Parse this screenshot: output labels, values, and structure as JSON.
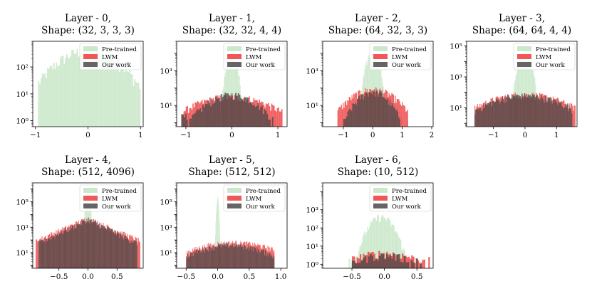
{
  "figure": {
    "legend_labels": [
      "Pre-trained",
      "LWM",
      "Our work"
    ],
    "colors": {
      "pretrained": "#c7e6c7",
      "lwm": "#ee3a3a",
      "ours": "#4a4a4a"
    }
  },
  "chart_data": [
    {
      "type": "histogram",
      "title_line1": "Layer - 0,",
      "title_line2": "Shape: (32, 3, 3, 3)",
      "yscale": "log",
      "xlim": [
        -1.05,
        1.05
      ],
      "ylim": [
        0.6,
        900
      ],
      "xticks": [
        -1,
        0,
        1
      ],
      "xtick_labels": [
        "−1",
        "0",
        "1"
      ],
      "yticks": [
        1,
        10,
        100
      ],
      "ytick_labels": [
        "10⁰",
        "10¹",
        "10²"
      ],
      "legend_position": "top-right",
      "series": [
        {
          "name": "Pre-trained",
          "color": "#c7e6c7",
          "center": 0.0,
          "spread": 0.4,
          "peak": 400,
          "range": [
            -0.95,
            1.0
          ],
          "bins": 80,
          "floor": 1.0
        },
        {
          "name": "LWM",
          "color": "#ee3a3a",
          "center": 0.0,
          "spread": 0.0,
          "peak": 0,
          "range": [
            0,
            0
          ],
          "bins": 0,
          "floor": 0
        },
        {
          "name": "Our work",
          "color": "#4a4a4a",
          "center": 0.0,
          "spread": 0.0,
          "peak": 0,
          "range": [
            0,
            0
          ],
          "bins": 0,
          "floor": 0
        }
      ]
    },
    {
      "type": "histogram",
      "title_line1": "Layer - 1,",
      "title_line2": "Shape: (32, 32, 4, 4)",
      "yscale": "log",
      "xlim": [
        -1.2,
        1.2
      ],
      "ylim": [
        0.6,
        50000
      ],
      "xticks": [
        -1,
        0,
        1
      ],
      "xtick_labels": [
        "−1",
        "0",
        "1"
      ],
      "yticks": [
        10,
        1000
      ],
      "ytick_labels": [
        "10¹",
        "10³"
      ],
      "legend_position": "top-right",
      "series": [
        {
          "name": "Pre-trained",
          "color": "#c7e6c7",
          "center": 0.0,
          "spread": 0.06,
          "peak": 15000,
          "range": [
            -0.6,
            0.6
          ],
          "bins": 70,
          "floor": 1.0
        },
        {
          "name": "LWM",
          "color": "#ee3a3a",
          "center": 0.0,
          "spread": 0.55,
          "peak": 30,
          "range": [
            -1.1,
            1.1
          ],
          "bins": 90,
          "floor": 1.5
        },
        {
          "name": "Our work",
          "color": "#4a4a4a",
          "center": 0.0,
          "spread": 0.35,
          "peak": 40,
          "range": [
            -1.1,
            0.9
          ],
          "bins": 70,
          "floor": 1.5
        }
      ]
    },
    {
      "type": "histogram",
      "title_line1": "Layer - 2,",
      "title_line2": "Shape: (64, 32, 3, 3)",
      "yscale": "log",
      "xlim": [
        -1.7,
        2.05
      ],
      "ylim": [
        0.6,
        50000
      ],
      "xticks": [
        -1,
        0,
        1,
        2
      ],
      "xtick_labels": [
        "−1",
        "0",
        "1",
        "2"
      ],
      "yticks": [
        10,
        1000
      ],
      "ytick_labels": [
        "10¹",
        "10³"
      ],
      "legend_position": "top-right",
      "series": [
        {
          "name": "Pre-trained",
          "color": "#c7e6c7",
          "center": 0.0,
          "spread": 0.12,
          "peak": 12000,
          "range": [
            -1.0,
            1.2
          ],
          "bins": 80,
          "floor": 1.0
        },
        {
          "name": "LWM",
          "color": "#ee3a3a",
          "center": 0.0,
          "spread": 0.5,
          "peak": 80,
          "range": [
            -1.2,
            1.2
          ],
          "bins": 80,
          "floor": 1.5
        },
        {
          "name": "Our work",
          "color": "#4a4a4a",
          "center": 0.0,
          "spread": 0.35,
          "peak": 60,
          "range": [
            -1.0,
            1.0
          ],
          "bins": 60,
          "floor": 1.5
        }
      ]
    },
    {
      "type": "histogram",
      "title_line1": "Layer - 3,",
      "title_line2": "Shape: (64, 64, 4, 4)",
      "yscale": "log",
      "xlim": [
        -1.85,
        1.65
      ],
      "ylim": [
        0.6,
        200000
      ],
      "xticks": [
        -1,
        0,
        1
      ],
      "xtick_labels": [
        "−1",
        "0",
        "1"
      ],
      "yticks": [
        10,
        1000,
        100000
      ],
      "ytick_labels": [
        "10¹",
        "10³",
        "10⁵"
      ],
      "legend_position": "top-right",
      "series": [
        {
          "name": "Pre-trained",
          "color": "#c7e6c7",
          "center": 0.0,
          "spread": 0.1,
          "peak": 80000,
          "range": [
            -1.0,
            1.0
          ],
          "bins": 80,
          "floor": 1.0
        },
        {
          "name": "LWM",
          "color": "#ee3a3a",
          "center": 0.0,
          "spread": 0.8,
          "peak": 70,
          "range": [
            -1.6,
            1.6
          ],
          "bins": 120,
          "floor": 1.5
        },
        {
          "name": "Our work",
          "color": "#4a4a4a",
          "center": 0.0,
          "spread": 0.75,
          "peak": 60,
          "range": [
            -1.6,
            1.5
          ],
          "bins": 110,
          "floor": 1.5
        }
      ]
    },
    {
      "type": "histogram",
      "title_line1": "Layer - 4,",
      "title_line2": "Shape: (512, 4096)",
      "yscale": "log",
      "xlim": [
        -0.95,
        0.95
      ],
      "ylim": [
        0.6,
        3000000
      ],
      "xticks": [
        -0.5,
        0.0,
        0.5
      ],
      "xtick_labels": [
        "−0.5",
        "0.0",
        "0.5"
      ],
      "yticks": [
        10,
        1000,
        100000
      ],
      "ytick_labels": [
        "10¹",
        "10³",
        "10⁵"
      ],
      "legend_position": "top-right",
      "series": [
        {
          "name": "Pre-trained",
          "color": "#c7e6c7",
          "center": 0.0,
          "spread": 0.02,
          "peak": 1000000,
          "range": [
            -0.3,
            0.3
          ],
          "bins": 60,
          "floor": 1.0
        },
        {
          "name": "LWM",
          "color": "#ee3a3a",
          "center": 0.0,
          "spread": 0.22,
          "peak": 5000,
          "range": [
            -0.9,
            0.9
          ],
          "bins": 140,
          "floor": 1.0,
          "shape": "laplace"
        },
        {
          "name": "Our work",
          "color": "#4a4a4a",
          "center": 0.0,
          "spread": 0.2,
          "peak": 4000,
          "range": [
            -0.85,
            0.85
          ],
          "bins": 130,
          "floor": 1.0,
          "shape": "laplace"
        }
      ]
    },
    {
      "type": "histogram",
      "title_line1": "Layer - 5,",
      "title_line2": "Shape: (512, 512)",
      "yscale": "log",
      "xlim": [
        -0.65,
        1.1
      ],
      "ylim": [
        0.6,
        3000000
      ],
      "xticks": [
        -0.5,
        0.0,
        0.5,
        1.0
      ],
      "xtick_labels": [
        "−0.5",
        "0.0",
        "0.5",
        "1.0"
      ],
      "yticks": [
        10,
        1000,
        100000
      ],
      "ytick_labels": [
        "10¹",
        "10³",
        "10⁵"
      ],
      "legend_position": "top-right",
      "series": [
        {
          "name": "Pre-trained",
          "color": "#c7e6c7",
          "center": 0.0,
          "spread": 0.01,
          "peak": 200000,
          "range": [
            -0.1,
            0.1
          ],
          "bins": 30,
          "floor": 1.0
        },
        {
          "name": "LWM",
          "color": "#ee3a3a",
          "center": 0.25,
          "spread": 0.4,
          "peak": 60,
          "range": [
            -0.5,
            0.9
          ],
          "bins": 140,
          "floor": 1.0
        },
        {
          "name": "Our work",
          "color": "#4a4a4a",
          "center": 0.2,
          "spread": 0.35,
          "peak": 40,
          "range": [
            -0.5,
            0.9
          ],
          "bins": 130,
          "floor": 1.0
        }
      ]
    },
    {
      "type": "histogram",
      "title_line1": "Layer - 6,",
      "title_line2": "Shape: (10, 512)",
      "yscale": "log",
      "xlim": [
        -0.95,
        0.75
      ],
      "ylim": [
        0.6,
        30000
      ],
      "xticks": [
        -0.5,
        0.0,
        0.5
      ],
      "xtick_labels": [
        "−0.5",
        "0.0",
        "0.5"
      ],
      "yticks": [
        1,
        10,
        100,
        1000
      ],
      "ytick_labels": [
        "10⁰",
        "10¹",
        "10²",
        "10³"
      ],
      "legend_position": "top-right",
      "series": [
        {
          "name": "Pre-trained",
          "color": "#c7e6c7",
          "center": -0.05,
          "spread": 0.12,
          "peak": 400,
          "range": [
            -0.55,
            0.5
          ],
          "bins": 70,
          "floor": 1.0
        },
        {
          "name": "LWM",
          "color": "#ee3a3a",
          "center": 0.0,
          "spread": 0.4,
          "peak": 4,
          "range": [
            -0.5,
            0.7
          ],
          "bins": 50,
          "floor": 1.0
        },
        {
          "name": "Our work",
          "color": "#4a4a4a",
          "center": 0.0,
          "spread": 0.35,
          "peak": 3,
          "range": [
            -0.5,
            0.6
          ],
          "bins": 40,
          "floor": 1.0
        }
      ]
    }
  ]
}
